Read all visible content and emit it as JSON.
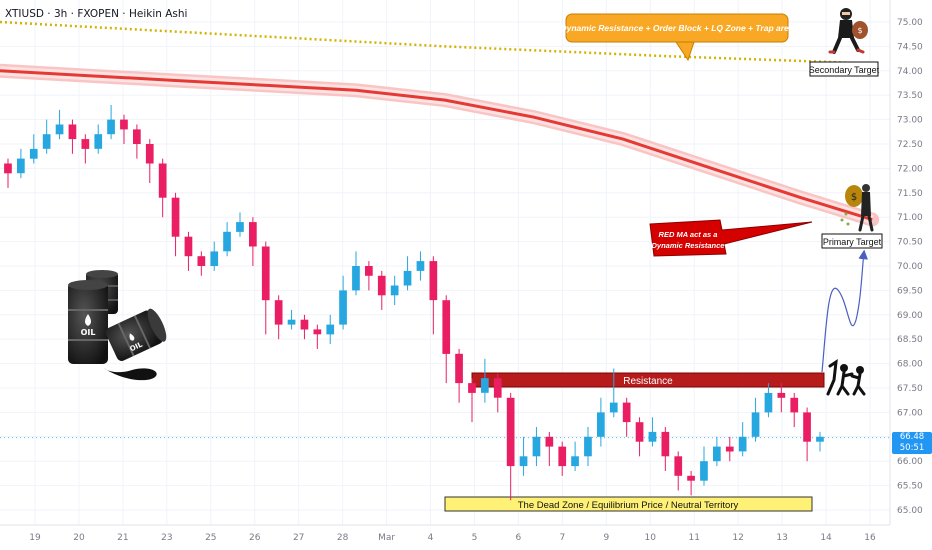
{
  "header": {
    "symbol_line": "XTIUSD · 3h · FXOPEN · Heikin Ashi"
  },
  "price_badge": {
    "price": "66.48",
    "countdown": "50:51"
  },
  "annotations": {
    "top_callout": "Dynamic Resistance + Order Block + LQ Zone + Trap area",
    "red_ma_callout_line1": "RED MA act as a",
    "red_ma_callout_line2": "Dynamic Resistance",
    "resistance_label": "Resistance",
    "dead_zone_label": "The Dead Zone / Equilibrium Price / Neutral Territory",
    "primary_target": "Primary Target",
    "secondary_target": "Secondary Target"
  },
  "colors": {
    "up_candle": "#26a7e0",
    "down_candle": "#e91e63",
    "ma_red": "#e53935",
    "ma_band": "#f9c4c4",
    "yellow_dotted": "#d4b200",
    "resistance_box": "#b71c1c",
    "dead_zone": "#fff176",
    "callout_orange": "#f9a825",
    "callout_red": "#d50000"
  },
  "icons": [
    "oil-barrels-icon",
    "thief-running-icon",
    "thief-money-bag-icon",
    "fighters-icon"
  ],
  "chart_data": {
    "type": "candlestick",
    "chart_style": "Heikin Ashi",
    "ylim": [
      64.8,
      75.3
    ],
    "y_ticks": [
      "75.00",
      "74.50",
      "74.00",
      "73.50",
      "73.00",
      "72.50",
      "72.00",
      "71.50",
      "71.00",
      "70.50",
      "70.00",
      "69.50",
      "69.00",
      "68.50",
      "68.00",
      "67.50",
      "67.00",
      "66.50",
      "66.00",
      "65.50",
      "65.00"
    ],
    "x_tick_labels": [
      "19",
      "20",
      "21",
      "23",
      "25",
      "26",
      "27",
      "28",
      "Mar",
      "4",
      "5",
      "6",
      "7",
      "9",
      "10",
      "11",
      "12",
      "13",
      "14",
      "16"
    ],
    "candles": [
      [
        72.1,
        71.9,
        72.2,
        71.6
      ],
      [
        71.9,
        72.2,
        72.4,
        71.8
      ],
      [
        72.2,
        72.4,
        72.7,
        72.1
      ],
      [
        72.4,
        72.7,
        73.0,
        72.3
      ],
      [
        72.7,
        72.9,
        73.2,
        72.6
      ],
      [
        72.9,
        72.6,
        73.0,
        72.3
      ],
      [
        72.6,
        72.4,
        72.7,
        72.1
      ],
      [
        72.4,
        72.7,
        72.9,
        72.3
      ],
      [
        72.7,
        73.0,
        73.3,
        72.6
      ],
      [
        73.0,
        72.8,
        73.1,
        72.5
      ],
      [
        72.8,
        72.5,
        72.9,
        72.2
      ],
      [
        72.5,
        72.1,
        72.6,
        71.7
      ],
      [
        72.1,
        71.4,
        72.2,
        71.0
      ],
      [
        71.4,
        70.6,
        71.5,
        70.2
      ],
      [
        70.6,
        70.2,
        70.7,
        69.9
      ],
      [
        70.2,
        70.0,
        70.3,
        69.8
      ],
      [
        70.0,
        70.3,
        70.5,
        69.9
      ],
      [
        70.3,
        70.7,
        70.9,
        70.2
      ],
      [
        70.7,
        70.9,
        71.1,
        70.6
      ],
      [
        70.9,
        70.4,
        71.0,
        70.0
      ],
      [
        70.4,
        69.3,
        70.5,
        68.6
      ],
      [
        69.3,
        68.8,
        69.4,
        68.5
      ],
      [
        68.8,
        68.9,
        69.1,
        68.7
      ],
      [
        68.9,
        68.7,
        69.0,
        68.5
      ],
      [
        68.7,
        68.6,
        68.8,
        68.3
      ],
      [
        68.6,
        68.8,
        69.0,
        68.4
      ],
      [
        68.8,
        69.5,
        69.8,
        68.7
      ],
      [
        69.5,
        70.0,
        70.3,
        69.4
      ],
      [
        70.0,
        69.8,
        70.1,
        69.5
      ],
      [
        69.8,
        69.4,
        69.9,
        69.1
      ],
      [
        69.4,
        69.6,
        69.8,
        69.2
      ],
      [
        69.6,
        69.9,
        70.2,
        69.5
      ],
      [
        69.9,
        70.1,
        70.3,
        69.7
      ],
      [
        70.1,
        69.3,
        70.2,
        68.6
      ],
      [
        69.3,
        68.2,
        69.4,
        67.6
      ],
      [
        68.2,
        67.6,
        68.3,
        67.2
      ],
      [
        67.6,
        67.4,
        67.7,
        66.8
      ],
      [
        67.4,
        67.7,
        68.1,
        67.2
      ],
      [
        67.7,
        67.3,
        67.8,
        67.0
      ],
      [
        67.3,
        65.9,
        67.4,
        65.2
      ],
      [
        65.9,
        66.1,
        66.5,
        65.7
      ],
      [
        66.1,
        66.5,
        66.7,
        65.9
      ],
      [
        66.5,
        66.3,
        66.6,
        65.9
      ],
      [
        66.3,
        65.9,
        66.4,
        65.7
      ],
      [
        65.9,
        66.1,
        66.4,
        65.8
      ],
      [
        66.1,
        66.5,
        66.7,
        65.9
      ],
      [
        66.5,
        67.0,
        67.3,
        66.3
      ],
      [
        67.0,
        67.2,
        67.9,
        66.9
      ],
      [
        67.2,
        66.8,
        67.3,
        66.5
      ],
      [
        66.8,
        66.4,
        66.9,
        66.1
      ],
      [
        66.4,
        66.6,
        66.9,
        66.3
      ],
      [
        66.6,
        66.1,
        66.7,
        65.8
      ],
      [
        66.1,
        65.7,
        66.2,
        65.4
      ],
      [
        65.7,
        65.6,
        65.8,
        65.3
      ],
      [
        65.6,
        66.0,
        66.3,
        65.5
      ],
      [
        66.0,
        66.3,
        66.5,
        65.9
      ],
      [
        66.3,
        66.2,
        66.5,
        66.0
      ],
      [
        66.2,
        66.5,
        66.8,
        66.1
      ],
      [
        66.5,
        67.0,
        67.3,
        66.4
      ],
      [
        67.0,
        67.4,
        67.6,
        66.9
      ],
      [
        67.4,
        67.3,
        67.6,
        67.0
      ],
      [
        67.3,
        67.0,
        67.4,
        66.7
      ],
      [
        67.0,
        66.4,
        67.1,
        66.0
      ],
      [
        66.4,
        66.5,
        66.6,
        66.2
      ]
    ],
    "lines": [
      {
        "name": "",
        "style": "solid thick band",
        "color": "#e53935",
        "x_frac": [
          0.0,
          0.1,
          0.2,
          0.3,
          0.4,
          0.5,
          0.6,
          0.7,
          0.8,
          0.9,
          0.98
        ],
        "y": [
          74.0,
          73.9,
          73.8,
          73.7,
          73.6,
          73.4,
          73.05,
          72.6,
          72.0,
          71.4,
          70.95
        ]
      },
      {
        "name": "",
        "style": "dotted",
        "color": "#d4b200",
        "x_frac": [
          0.0,
          0.25,
          0.5,
          0.75,
          0.98
        ],
        "y": [
          75.0,
          74.75,
          74.5,
          74.3,
          74.15
        ]
      }
    ],
    "zones": [
      {
        "label": "Resistance",
        "y_low": 67.5,
        "y_high": 67.8
      },
      {
        "label": "The Dead Zone / Equilibrium Price / Neutral Territory",
        "y_low": 65.15,
        "y_high": 65.45
      }
    ],
    "current_price": 66.48,
    "projection_path_y": [
      67.5,
      68.8,
      69.6,
      69.0,
      70.3
    ]
  }
}
